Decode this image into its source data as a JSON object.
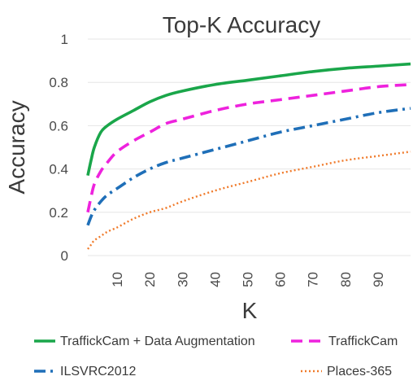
{
  "chart_data": {
    "type": "line",
    "title": "Top-K Accuracy",
    "xlabel": "K",
    "ylabel": "Accuracy",
    "xlim": [
      1,
      100
    ],
    "ylim": [
      0,
      1
    ],
    "x_ticks": [
      10,
      20,
      30,
      40,
      50,
      60,
      70,
      80,
      90
    ],
    "y_ticks": [
      "0",
      "0.2",
      "0.4",
      "0.6",
      "0.8",
      "1"
    ],
    "grid": true,
    "legend": "bottom",
    "series": [
      {
        "name": "TraffickCam + Data Augmentation",
        "color": "#1aa64a",
        "style": "solid",
        "x": [
          1,
          2,
          3,
          5,
          7,
          10,
          15,
          20,
          25,
          30,
          40,
          50,
          60,
          70,
          80,
          90,
          100
        ],
        "y": [
          0.37,
          0.44,
          0.5,
          0.57,
          0.6,
          0.63,
          0.67,
          0.71,
          0.74,
          0.76,
          0.79,
          0.81,
          0.83,
          0.85,
          0.865,
          0.875,
          0.885
        ]
      },
      {
        "name": "TraffickCam",
        "color": "#ee22dd",
        "style": "dashed",
        "x": [
          1,
          2,
          3,
          5,
          7,
          10,
          15,
          20,
          25,
          30,
          40,
          50,
          60,
          70,
          80,
          90,
          100
        ],
        "y": [
          0.2,
          0.27,
          0.33,
          0.39,
          0.43,
          0.48,
          0.53,
          0.57,
          0.61,
          0.63,
          0.67,
          0.7,
          0.72,
          0.74,
          0.76,
          0.78,
          0.79
        ]
      },
      {
        "name": "ILSVRC2012",
        "color": "#1f6fb8",
        "style": "dashdot",
        "x": [
          1,
          2,
          3,
          5,
          7,
          10,
          15,
          20,
          25,
          30,
          40,
          50,
          60,
          70,
          80,
          90,
          100
        ],
        "y": [
          0.14,
          0.18,
          0.21,
          0.25,
          0.28,
          0.31,
          0.36,
          0.4,
          0.43,
          0.45,
          0.49,
          0.53,
          0.57,
          0.6,
          0.63,
          0.66,
          0.68
        ]
      },
      {
        "name": "Places-365",
        "color": "#f07a2a",
        "style": "dotted",
        "x": [
          1,
          2,
          3,
          5,
          7,
          10,
          15,
          20,
          25,
          30,
          40,
          50,
          60,
          70,
          80,
          90,
          100
        ],
        "y": [
          0.03,
          0.05,
          0.07,
          0.09,
          0.11,
          0.13,
          0.17,
          0.2,
          0.22,
          0.25,
          0.3,
          0.34,
          0.38,
          0.41,
          0.44,
          0.46,
          0.48
        ]
      }
    ]
  }
}
